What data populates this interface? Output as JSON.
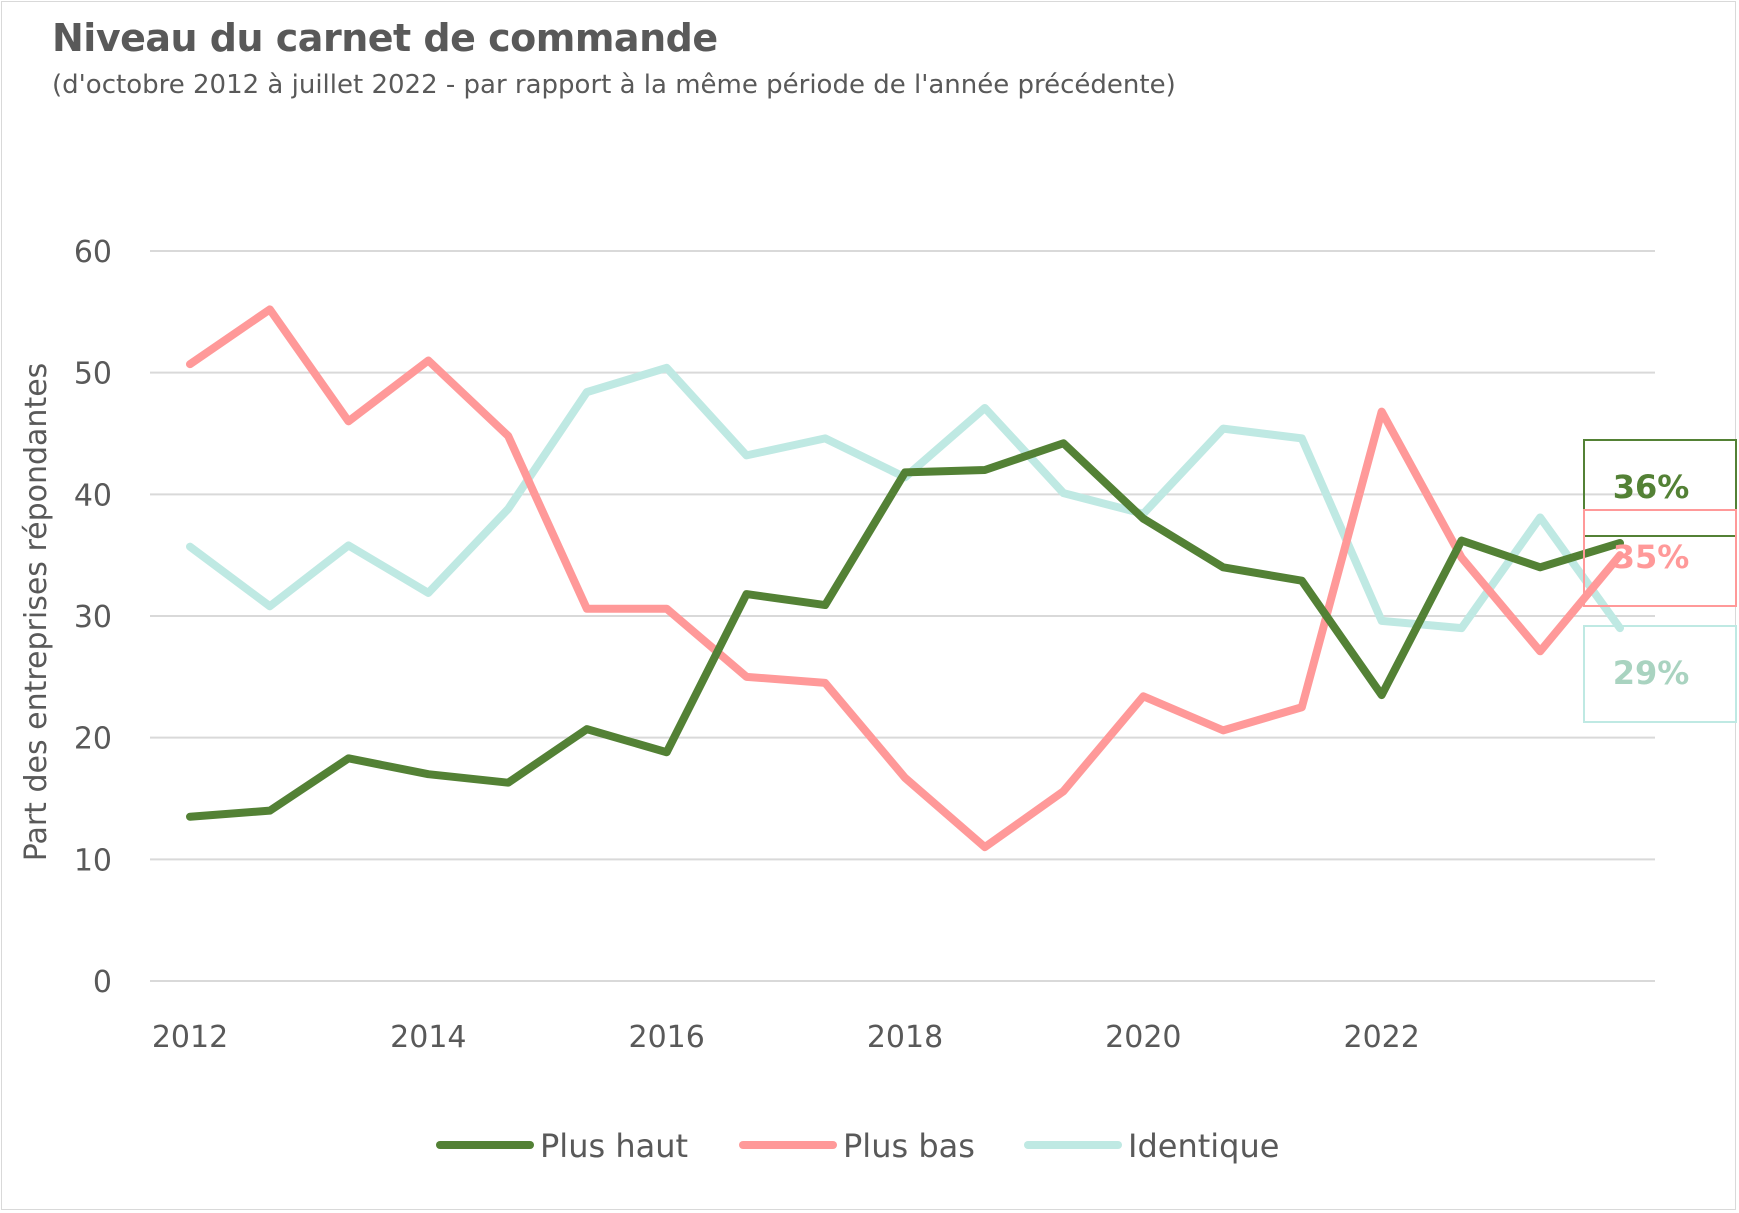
{
  "chart_data": {
    "type": "line",
    "title": "Niveau du carnet de commande",
    "subtitle": "(d'octobre 2012 à juillet 2022 - par rapport à la même période de l'année précédente)",
    "ylabel": "Part des entreprises répondantes",
    "xlabel": "",
    "ylim": [
      0,
      60
    ],
    "y_ticks": [
      "0",
      "10",
      "20",
      "30",
      "40",
      "50",
      "60"
    ],
    "x_ticks": [
      {
        "year": 2012,
        "label": "2012"
      },
      {
        "year": 2014,
        "label": "2014"
      },
      {
        "year": 2016,
        "label": "2016"
      },
      {
        "year": 2018,
        "label": "2018"
      },
      {
        "year": 2020,
        "label": "2020"
      },
      {
        "year": 2022,
        "label": "2022"
      }
    ],
    "grid": true,
    "legend_position": "bottom",
    "x": [
      2012.0,
      2012.67,
      2013.33,
      2014.0,
      2014.67,
      2015.33,
      2016.0,
      2016.67,
      2017.33,
      2018.0,
      2018.67,
      2019.33,
      2020.0,
      2020.67,
      2021.33,
      2022.0,
      2022.67,
      2023.33,
      2024.0
    ],
    "series": [
      {
        "name": "Plus haut",
        "color": "#538135",
        "values": [
          13.5,
          14.0,
          18.3,
          17.0,
          16.3,
          20.7,
          18.8,
          31.8,
          30.9,
          41.8,
          42.0,
          44.2,
          38.0,
          34.0,
          32.9,
          23.5,
          36.2,
          34.0,
          36.0
        ],
        "end_label": "36%"
      },
      {
        "name": "Plus bas",
        "color": "#ff9999",
        "values": [
          50.7,
          55.2,
          46.0,
          51.0,
          44.8,
          30.6,
          30.6,
          25.0,
          24.5,
          16.7,
          11.0,
          15.6,
          23.4,
          20.6,
          22.5,
          46.8,
          34.8,
          27.1,
          35.0
        ],
        "end_label": "35%"
      },
      {
        "name": "Identique",
        "color": "#bfe9e3",
        "values": [
          35.7,
          30.8,
          35.8,
          31.9,
          38.8,
          48.4,
          50.4,
          43.2,
          44.6,
          41.4,
          47.1,
          40.1,
          38.4,
          45.4,
          44.6,
          29.6,
          29.0,
          38.1,
          29.0
        ],
        "end_label": "29%"
      }
    ]
  }
}
